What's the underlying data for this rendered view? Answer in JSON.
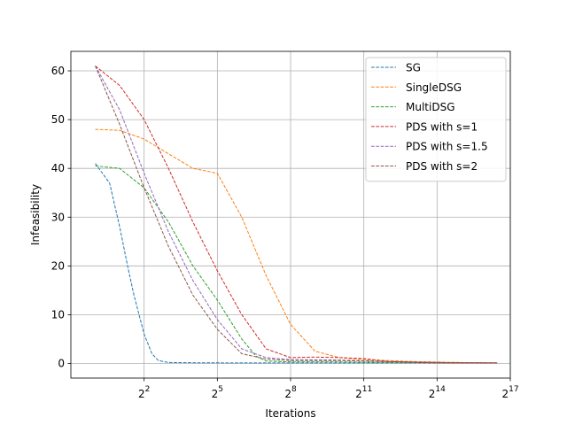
{
  "chart_data": {
    "type": "line",
    "title": "",
    "xlabel": "Iterations",
    "ylabel": "Infeasibility",
    "xscale": "log2",
    "xlim": [
      0.5,
      131072
    ],
    "ylim": [
      -3,
      64
    ],
    "xticks": [
      {
        "value": 4,
        "base": "2",
        "exp": "2"
      },
      {
        "value": 32,
        "base": "2",
        "exp": "5"
      },
      {
        "value": 256,
        "base": "2",
        "exp": "8"
      },
      {
        "value": 2048,
        "base": "2",
        "exp": "11"
      },
      {
        "value": 16384,
        "base": "2",
        "exp": "14"
      },
      {
        "value": 131072,
        "base": "2",
        "exp": "17"
      }
    ],
    "yticks": [
      0,
      10,
      20,
      30,
      40,
      50,
      60
    ],
    "grid": true,
    "legend_position": "top-right",
    "series": [
      {
        "name": "SG",
        "color": "#1f77b4",
        "dash": true,
        "x": [
          1,
          1.5,
          2,
          2.5,
          3,
          4,
          5,
          6,
          8,
          16,
          64,
          512,
          4096,
          32768,
          90000
        ],
        "y": [
          41,
          37,
          28,
          20,
          14,
          6,
          2,
          0.6,
          0.2,
          0.15,
          0.1,
          0.1,
          0.1,
          0.1,
          0.1
        ]
      },
      {
        "name": "SingleDSG",
        "color": "#ff7f0e",
        "dash": true,
        "x": [
          1,
          2,
          4,
          8,
          16,
          32,
          64,
          128,
          256,
          512,
          1024,
          2048,
          8192,
          32768,
          90000
        ],
        "y": [
          48,
          47.8,
          46,
          43,
          40,
          39,
          30,
          18,
          8,
          2.5,
          1.2,
          0.8,
          0.4,
          0.2,
          0.1
        ]
      },
      {
        "name": "MultiDSG",
        "color": "#2ca02c",
        "dash": true,
        "x": [
          1,
          2,
          4,
          8,
          16,
          32,
          64,
          96,
          128,
          256,
          1024,
          8192,
          90000
        ],
        "y": [
          40.5,
          40,
          36,
          29,
          20,
          13,
          5,
          1.5,
          0.5,
          0.3,
          0.3,
          0.2,
          0.1
        ]
      },
      {
        "name": "PDS with s=1",
        "color": "#d62728",
        "dash": true,
        "x": [
          1,
          2,
          4,
          8,
          16,
          32,
          64,
          128,
          256,
          512,
          1024,
          2048,
          4096,
          16384,
          90000
        ],
        "y": [
          61,
          57,
          50,
          40,
          29,
          19,
          10,
          3,
          1.2,
          1.3,
          1.2,
          1.0,
          0.4,
          0.1,
          0.1
        ]
      },
      {
        "name": "PDS with s=1.5",
        "color": "#9467bd",
        "dash": true,
        "x": [
          1,
          2,
          4,
          8,
          16,
          32,
          64,
          128,
          256,
          1024,
          4096,
          16384,
          90000
        ],
        "y": [
          61,
          52,
          39,
          27,
          17,
          9,
          3,
          1.2,
          0.8,
          0.7,
          0.4,
          0.2,
          0.1
        ]
      },
      {
        "name": "PDS with s=2",
        "color": "#8c564b",
        "dash": true,
        "x": [
          1,
          2,
          4,
          8,
          16,
          32,
          64,
          128,
          256,
          1024,
          4096,
          16384,
          90000
        ],
        "y": [
          61,
          49,
          36,
          24,
          14,
          7,
          2,
          0.9,
          0.6,
          0.6,
          0.4,
          0.2,
          0.1
        ]
      }
    ]
  }
}
